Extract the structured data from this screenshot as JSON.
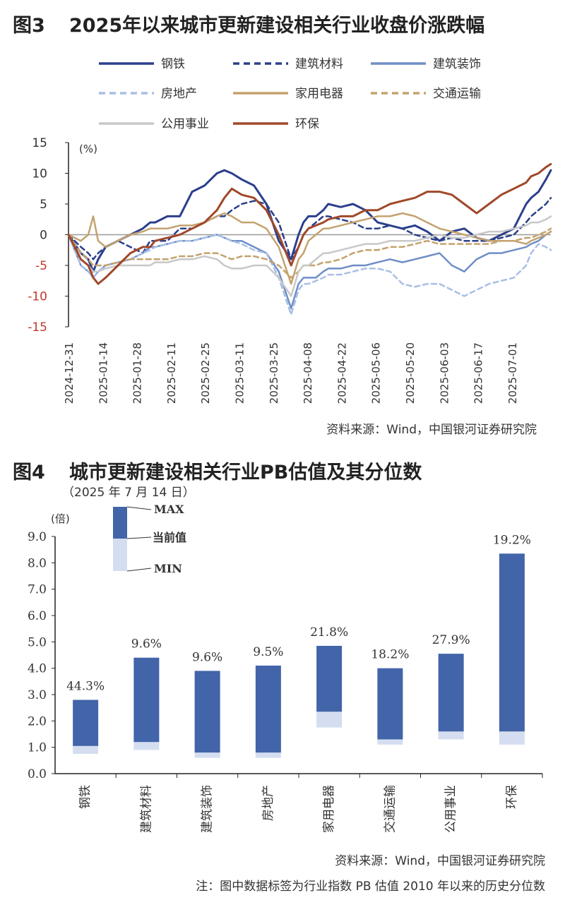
{
  "fig3": {
    "number": "图3",
    "title": "2025年以来城市更新建设相关行业收盘价涨跌幅",
    "unit": "(%)",
    "source": "资料来源：Wind，中国银河证券研究院"
  },
  "fig4": {
    "number": "图4",
    "title": "城市更新建设相关行业PB估值及其分位数",
    "subtitle": "（2025 年 7 月 14 日）",
    "unit": "(倍)",
    "legend": {
      "max": "MAX",
      "current": "当前值",
      "min": "MIN"
    },
    "source": "资料来源：Wind，中国银河证券研究院",
    "note": "注：图中数据标签为行业指数 PB 估值 2010 年以来的历史分位数"
  },
  "chart_data": [
    {
      "type": "line",
      "title": "2025年以来城市更新建设相关行业收盘价涨跌幅",
      "ylabel": "(%)",
      "ylim": [
        -15,
        15
      ],
      "yticks": [
        15,
        10,
        5,
        0,
        -5,
        -10,
        -15
      ],
      "x_tick_labels": [
        "2024-12-31",
        "2025-01-14",
        "2025-01-28",
        "2025-02-11",
        "2025-02-25",
        "2025-03-11",
        "2025-03-25",
        "2025-04-08",
        "2025-04-22",
        "2025-05-06",
        "2025-05-20",
        "2025-06-03",
        "2025-06-17",
        "2025-07-01"
      ],
      "x": [
        0,
        5,
        8,
        10,
        12,
        15,
        20,
        25,
        30,
        33,
        35,
        40,
        45,
        50,
        55,
        60,
        63,
        66,
        70,
        75,
        80,
        85,
        90,
        93,
        95,
        97,
        100,
        103,
        105,
        110,
        115,
        120,
        125,
        130,
        135,
        140,
        145,
        150,
        155,
        160,
        165,
        170,
        175,
        180,
        185,
        187,
        190,
        193,
        195
      ],
      "series": [
        {
          "name": "钢铁",
          "color": "#2b3f8c",
          "dash": "solid",
          "width": 3,
          "values": [
            0,
            -3,
            -4,
            -6,
            -4,
            -2,
            -1,
            0,
            1,
            2,
            2,
            3,
            3,
            7,
            8,
            10,
            10.5,
            10,
            9,
            8,
            5,
            -1,
            -4,
            0,
            2,
            3,
            3,
            4,
            5,
            4.5,
            5,
            4,
            2,
            1.5,
            1,
            1.5,
            0.5,
            -1,
            0.5,
            1,
            -0.5,
            -1,
            0,
            1,
            5,
            6,
            7,
            9,
            10.5
          ]
        },
        {
          "name": "建筑材料",
          "color": "#2b3f8c",
          "dash": "dash",
          "width": 2.5,
          "values": [
            0,
            -2,
            -3,
            -4,
            -3,
            -2,
            -1,
            -2,
            -3,
            -1,
            -1,
            -1,
            1,
            1,
            2,
            3,
            3,
            4,
            5,
            5.5,
            5,
            2,
            -4,
            -2,
            0,
            1,
            2,
            3,
            3,
            2.5,
            2,
            1,
            1,
            1.5,
            1,
            0,
            -0.5,
            -1,
            -0.5,
            -1,
            -1,
            -1,
            -0.5,
            0,
            2,
            3,
            4,
            5,
            6
          ]
        },
        {
          "name": "建筑装饰",
          "color": "#6f8ec7",
          "dash": "solid",
          "width": 2.5,
          "values": [
            0,
            -5,
            -6,
            -7,
            -6,
            -5,
            -4.5,
            -4,
            -3,
            -2,
            -2,
            -1.5,
            -1,
            -1,
            -0.5,
            0,
            -0.5,
            -1,
            -1,
            -2,
            -3,
            -6,
            -12,
            -8,
            -7,
            -7,
            -7,
            -6,
            -5.5,
            -5.5,
            -5,
            -5,
            -4.5,
            -4,
            -4.5,
            -4,
            -3.5,
            -3,
            -5,
            -6,
            -4,
            -3,
            -3,
            -2.5,
            -2,
            -1.5,
            -1,
            0,
            0.5
          ]
        },
        {
          "name": "房地产",
          "color": "#a8bfe6",
          "dash": "dash",
          "width": 2.5,
          "values": [
            0,
            -5,
            -6,
            -7,
            -6,
            -5,
            -4.5,
            -4,
            -3,
            -2.5,
            -2,
            -1.5,
            -1,
            -1,
            -0.5,
            0,
            -0.5,
            -1,
            -1.5,
            -2.5,
            -3,
            -7,
            -13,
            -9,
            -8,
            -8,
            -7.5,
            -7,
            -6.5,
            -6.5,
            -6,
            -5.5,
            -5.5,
            -6,
            -8,
            -8.5,
            -8,
            -8,
            -9,
            -10,
            -9,
            -8,
            -7.5,
            -7,
            -5,
            -3,
            -1.5,
            -2,
            -2.5
          ]
        },
        {
          "name": "家用电器",
          "color": "#c4a26e",
          "dash": "solid",
          "width": 2.5,
          "values": [
            0,
            -1,
            0,
            3,
            -1,
            -2,
            -1,
            0,
            0.5,
            1,
            1,
            1,
            1.5,
            1.5,
            2,
            3,
            3.5,
            3,
            2,
            2,
            1,
            -2,
            -8,
            -4,
            -3,
            -1,
            0,
            1,
            1,
            1.5,
            2,
            2.5,
            3,
            3,
            3.5,
            3,
            2,
            1,
            0.5,
            0,
            -0.5,
            -1,
            -1,
            -1,
            -1.5,
            -1,
            -0.5,
            0,
            0.5
          ]
        },
        {
          "name": "交通运输",
          "color": "#c4a26e",
          "dash": "dash",
          "width": 2.5,
          "values": [
            0,
            -3,
            -4,
            -5,
            -5,
            -5,
            -4.5,
            -4,
            -4,
            -4,
            -4,
            -4,
            -3.5,
            -3.5,
            -3,
            -3,
            -3.5,
            -4,
            -3.5,
            -3.5,
            -4,
            -5,
            -7,
            -6,
            -5,
            -5,
            -5,
            -4.5,
            -4.5,
            -4,
            -3,
            -2.5,
            -2.5,
            -2,
            -2,
            -1.5,
            -1,
            -1.5,
            -1.5,
            -1.5,
            -1.5,
            -1.5,
            -1,
            -1,
            -0.5,
            -0.5,
            0,
            0.5,
            1
          ]
        },
        {
          "name": "公用事业",
          "color": "#c8c8c8",
          "dash": "solid",
          "width": 2.5,
          "values": [
            0,
            -4,
            -5,
            -6,
            -6,
            -5.5,
            -5,
            -5,
            -5,
            -5,
            -4.5,
            -4.5,
            -4,
            -4,
            -3.5,
            -4,
            -5,
            -5.5,
            -5.5,
            -5,
            -5,
            -7,
            -10,
            -6,
            -5,
            -5,
            -4,
            -3,
            -3,
            -2.5,
            -2,
            -1.5,
            -1.5,
            -1,
            -1,
            -1,
            -0.5,
            0,
            -0.5,
            -0.5,
            0,
            0.5,
            0.5,
            1,
            1.5,
            2,
            2,
            2.5,
            3
          ]
        },
        {
          "name": "环保",
          "color": "#a0482a",
          "dash": "solid",
          "width": 3,
          "values": [
            0,
            -4,
            -5,
            -7,
            -8,
            -7,
            -5,
            -3,
            -2,
            -2,
            -1,
            -0.5,
            0,
            1,
            2,
            4,
            6,
            7.5,
            6.5,
            6,
            4,
            0,
            -5,
            -2,
            0,
            1,
            1.5,
            2,
            2.5,
            3,
            3,
            4,
            4,
            5,
            5.5,
            6,
            7,
            7,
            6.5,
            5,
            3.5,
            5,
            6.5,
            7.5,
            8.5,
            9.5,
            10,
            11,
            11.5
          ]
        }
      ]
    },
    {
      "type": "bar",
      "title": "城市更新建设相关行业PB估值及其分位数",
      "ylabel": "(倍)",
      "ylim": [
        0,
        9
      ],
      "yticks": [
        "0.0",
        "1.0",
        "2.0",
        "3.0",
        "4.0",
        "5.0",
        "6.0",
        "7.0",
        "8.0",
        "9.0"
      ],
      "categories": [
        "钢铁",
        "建筑材料",
        "建筑装饰",
        "房地产",
        "家用电器",
        "交通运输",
        "公用事业",
        "环保"
      ],
      "series": [
        {
          "name": "MAX",
          "values": [
            2.8,
            4.4,
            3.9,
            4.1,
            4.85,
            4.0,
            4.55,
            8.35
          ]
        },
        {
          "name": "当前值",
          "values": [
            1.05,
            1.2,
            0.8,
            0.8,
            2.35,
            1.3,
            1.6,
            1.6
          ]
        },
        {
          "name": "MIN",
          "values": [
            0.75,
            0.9,
            0.6,
            0.6,
            1.75,
            1.1,
            1.3,
            1.1
          ]
        }
      ],
      "percentile_labels": [
        "44.3%",
        "9.6%",
        "9.6%",
        "9.5%",
        "21.8%",
        "18.2%",
        "27.9%",
        "19.2%"
      ]
    }
  ]
}
